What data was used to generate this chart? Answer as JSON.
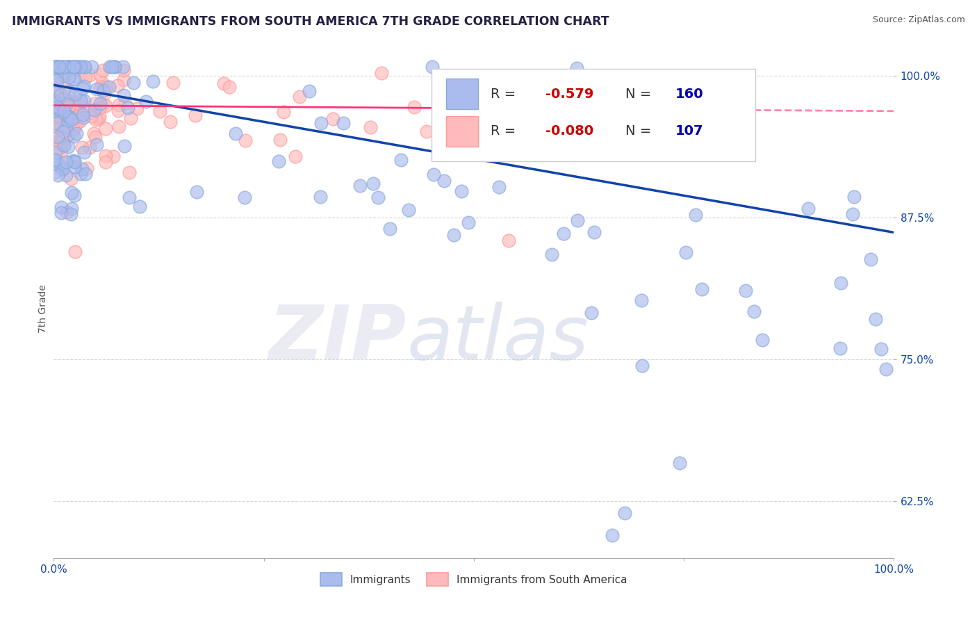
{
  "title": "IMMIGRANTS VS IMMIGRANTS FROM SOUTH AMERICA 7TH GRADE CORRELATION CHART",
  "source": "Source: ZipAtlas.com",
  "ylabel": "7th Grade",
  "R_blue": -0.579,
  "N_blue": 160,
  "R_pink": -0.08,
  "N_pink": 107,
  "blue_color": "#88AADD",
  "pink_color": "#FF9999",
  "blue_fill": "#AABBEE",
  "pink_fill": "#FFBBBB",
  "trendline_blue": "#1144AA",
  "trendline_pink": "#FF3377",
  "legend_blue": "Immigrants",
  "legend_pink": "Immigrants from South America",
  "watermark_zip": "ZIP",
  "watermark_atlas": "atlas",
  "xlim": [
    0.0,
    1.0
  ],
  "ylim": [
    0.575,
    1.015
  ],
  "yticks": [
    0.625,
    0.75,
    0.875,
    1.0
  ],
  "ytick_labels": [
    "62.5%",
    "75.0%",
    "87.5%",
    "100.0%"
  ],
  "xtick_labels": [
    "0.0%",
    "",
    "",
    "",
    "100.0%"
  ],
  "grid_color": "#CCCCCC",
  "background_color": "#FFFFFF",
  "title_color": "#222244",
  "source_color": "#555555",
  "legend_text_color": "#222244",
  "r_value_color": "#CC0000",
  "n_label_color": "#222244",
  "n_value_color": "#0000AA"
}
